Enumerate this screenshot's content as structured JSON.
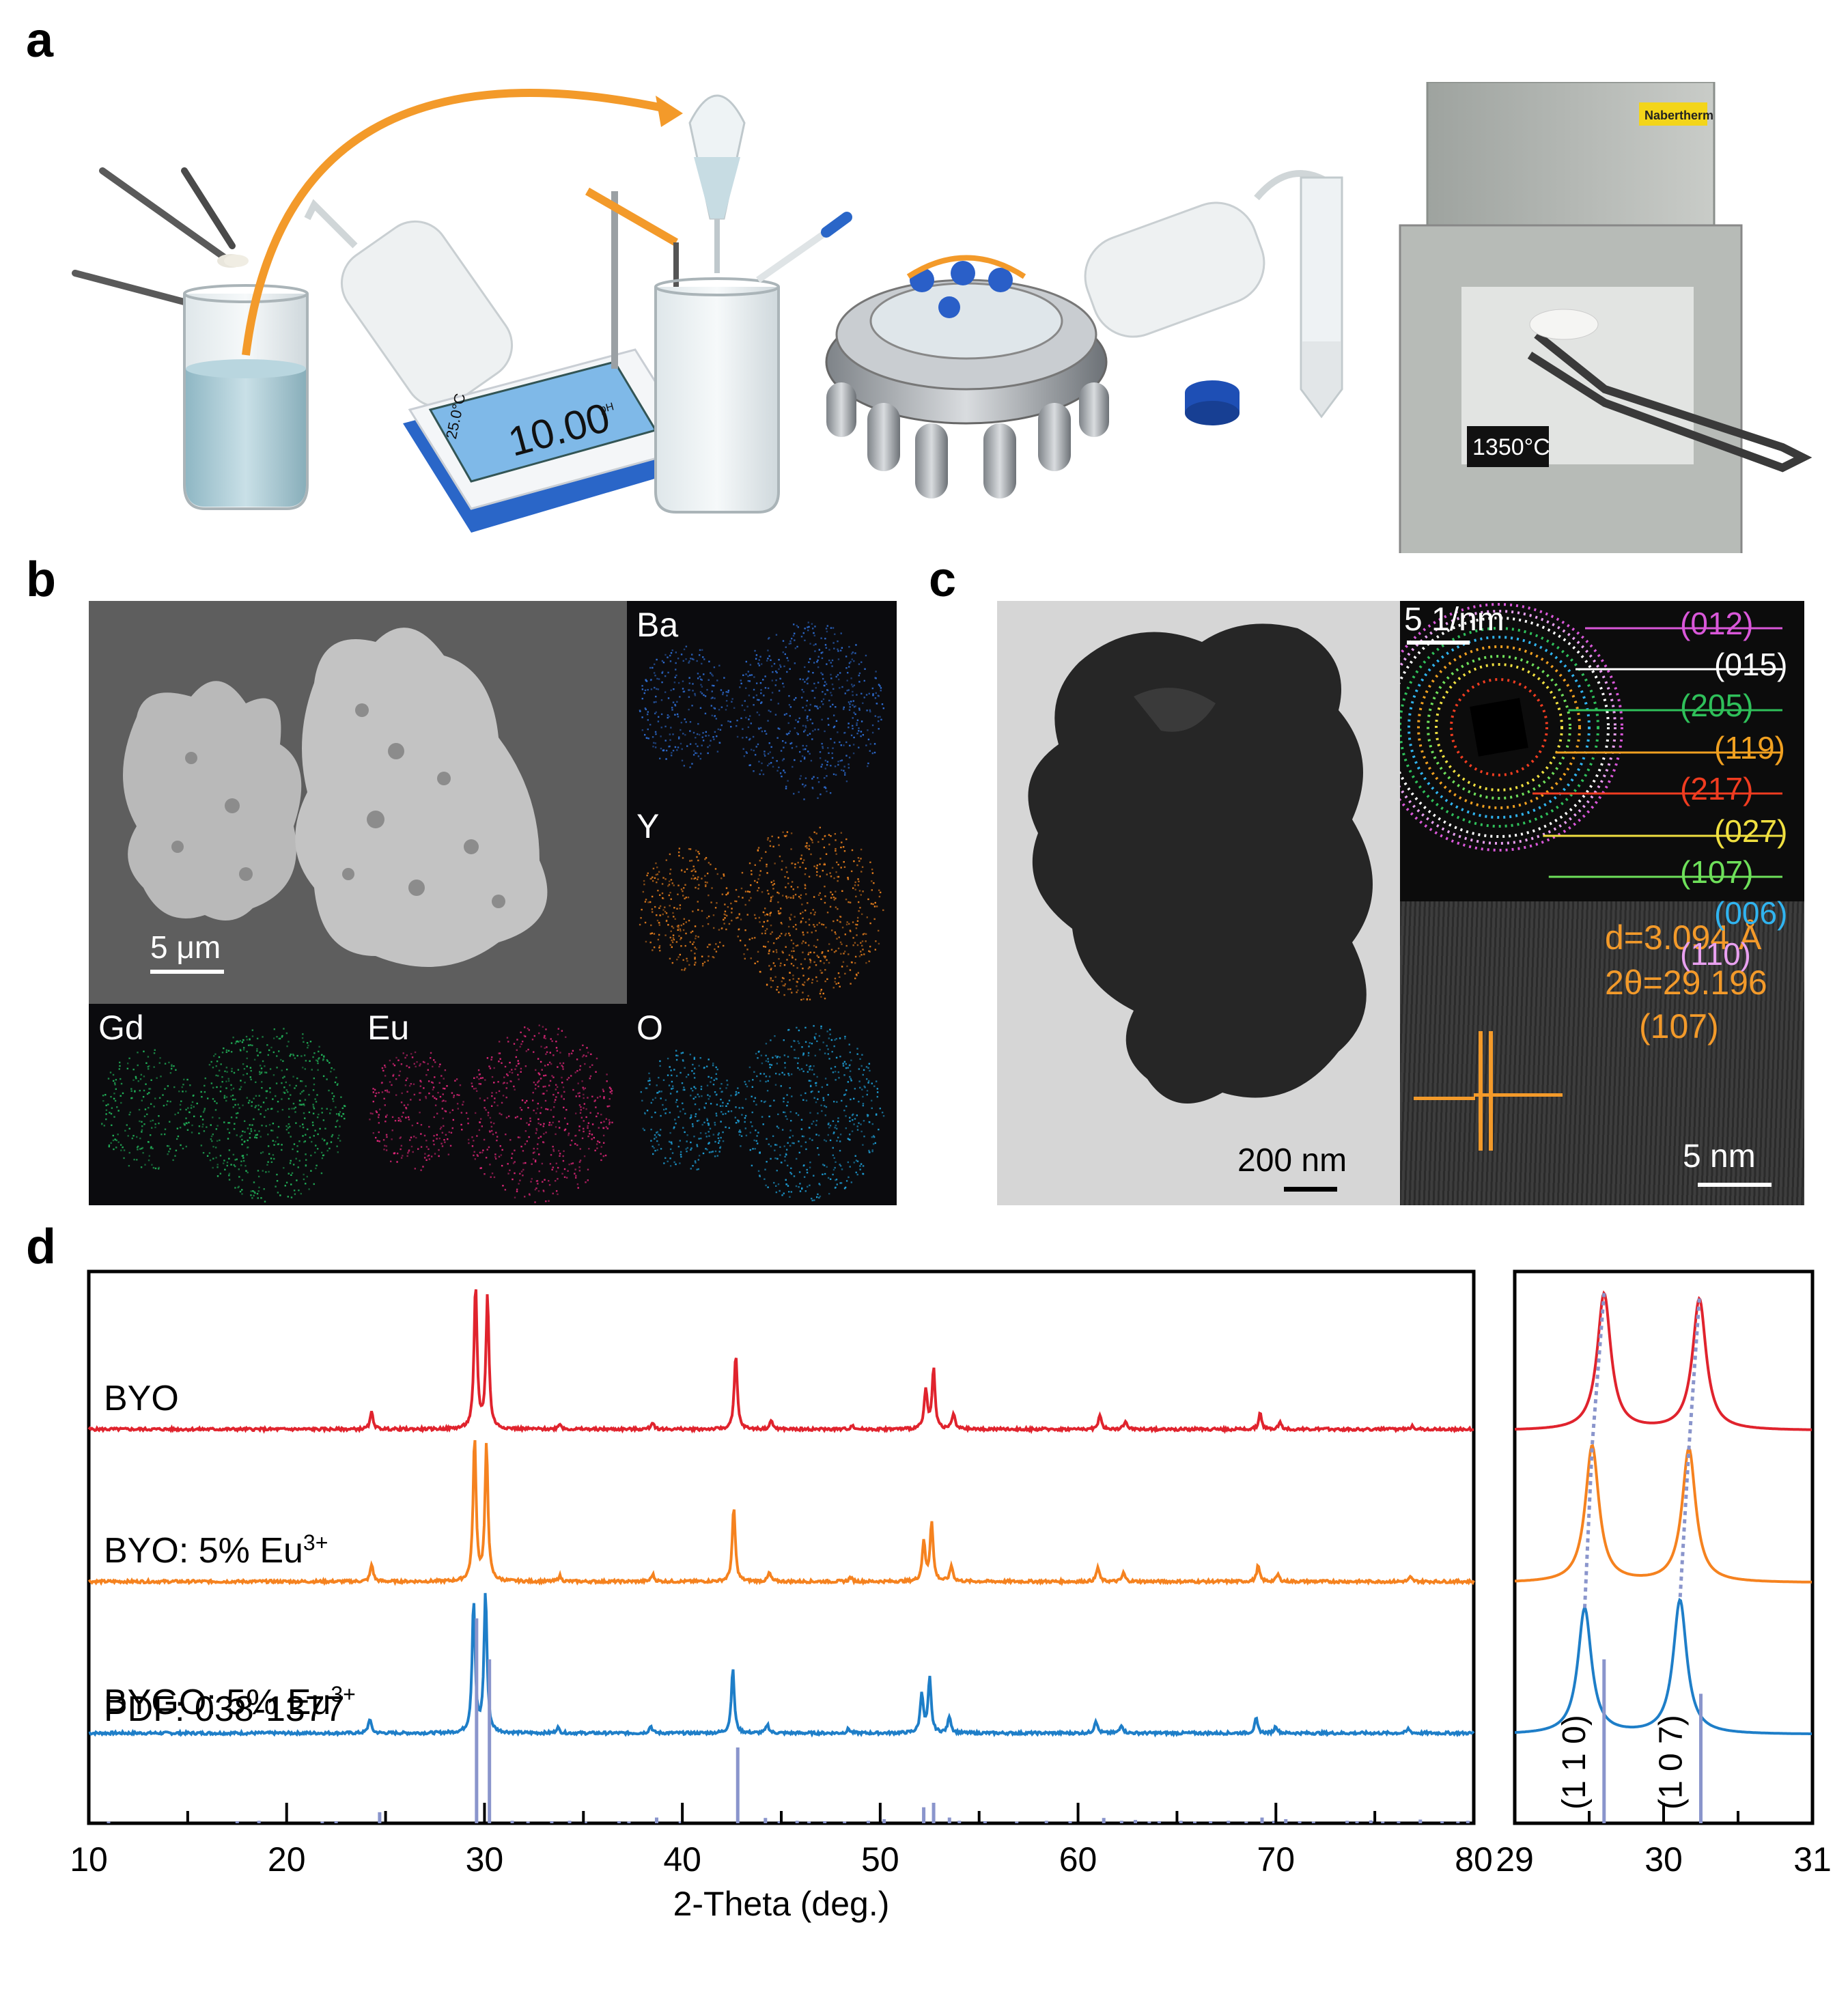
{
  "panel_labels": {
    "a": "a",
    "b": "b",
    "c": "c",
    "d": "d"
  },
  "panel_a": {
    "ph_meter": {
      "temp": "25.0°C",
      "value": "10.00",
      "unit": "pH"
    },
    "furnace": {
      "brand": "Nabertherm",
      "temp": "1350°C"
    }
  },
  "panel_b": {
    "scale_bar": "5 μm",
    "elements": [
      {
        "name": "Ba",
        "color": "#2f6fd6"
      },
      {
        "name": "Y",
        "color": "#f0841e"
      },
      {
        "name": "Gd",
        "color": "#22b45a"
      },
      {
        "name": "Eu",
        "color": "#e0277a"
      },
      {
        "name": "O",
        "color": "#1ea0d8"
      }
    ]
  },
  "panel_c": {
    "tem_scale": "200 nm",
    "saed_scale": "5 1/nm",
    "rings": [
      {
        "label": "(012)",
        "color": "#d957d9"
      },
      {
        "label": "(015)",
        "color": "#ffffff"
      },
      {
        "label": "(205)",
        "color": "#2fc05a"
      },
      {
        "label": "(119)",
        "color": "#f0a020"
      },
      {
        "label": "(217)",
        "color": "#f03c20"
      },
      {
        "label": "(027)",
        "color": "#f0e040"
      },
      {
        "label": "(107)",
        "color": "#6ee05a"
      },
      {
        "label": "(006)",
        "color": "#30b4f0"
      },
      {
        "label": "(110)",
        "color": "#e8a0f0"
      }
    ],
    "hrtem": {
      "d": "d=3.094 Å",
      "two_theta": "2θ=29.196",
      "plane": "(107)",
      "scale": "5 nm"
    }
  },
  "chart_data": [
    {
      "type": "line",
      "xlabel": "2-Theta (deg.)",
      "ylabel": "",
      "xlim": [
        10,
        80
      ],
      "xticks": [
        10,
        20,
        30,
        40,
        50,
        60,
        70,
        80
      ],
      "series": [
        {
          "name": "BYO",
          "color": "#e0232d",
          "peaks": [
            [
              24.3,
              0.12
            ],
            [
              29.55,
              1.0
            ],
            [
              30.15,
              0.93
            ],
            [
              33.8,
              0.04
            ],
            [
              38.5,
              0.05
            ],
            [
              42.7,
              0.52
            ],
            [
              44.5,
              0.06
            ],
            [
              48.6,
              0.03
            ],
            [
              52.3,
              0.28
            ],
            [
              52.7,
              0.42
            ],
            [
              53.7,
              0.11
            ],
            [
              61.1,
              0.1
            ],
            [
              62.4,
              0.06
            ],
            [
              69.2,
              0.11
            ],
            [
              70.2,
              0.05
            ],
            [
              76.9,
              0.03
            ]
          ]
        },
        {
          "name": "BYO: 5% Eu",
          "name_sup": "3+",
          "color": "#f5821f",
          "peaks": [
            [
              24.3,
              0.12
            ],
            [
              29.5,
              1.0
            ],
            [
              30.1,
              0.95
            ],
            [
              33.8,
              0.04
            ],
            [
              38.5,
              0.05
            ],
            [
              42.6,
              0.52
            ],
            [
              44.4,
              0.06
            ],
            [
              48.5,
              0.03
            ],
            [
              52.2,
              0.28
            ],
            [
              52.6,
              0.42
            ],
            [
              53.6,
              0.11
            ],
            [
              61.0,
              0.1
            ],
            [
              62.3,
              0.06
            ],
            [
              69.1,
              0.11
            ],
            [
              70.1,
              0.05
            ],
            [
              76.8,
              0.03
            ]
          ]
        },
        {
          "name": "BYGO: 5% Eu",
          "name_sup": "3+",
          "color": "#1e7ec8",
          "peaks": [
            [
              24.2,
              0.1
            ],
            [
              29.45,
              0.92
            ],
            [
              30.05,
              0.98
            ],
            [
              33.7,
              0.04
            ],
            [
              38.4,
              0.05
            ],
            [
              42.55,
              0.45
            ],
            [
              44.3,
              0.06
            ],
            [
              48.4,
              0.03
            ],
            [
              52.1,
              0.28
            ],
            [
              52.5,
              0.38
            ],
            [
              53.5,
              0.12
            ],
            [
              60.9,
              0.09
            ],
            [
              62.2,
              0.06
            ],
            [
              69.0,
              0.1
            ],
            [
              70.0,
              0.05
            ],
            [
              76.7,
              0.03
            ]
          ]
        }
      ],
      "reference": {
        "name": "PDF: 038-1377",
        "color": "#8a95cc",
        "sticks": [
          [
            11.0,
            0.04
          ],
          [
            17.5,
            0.05
          ],
          [
            18.6,
            0.06
          ],
          [
            21.8,
            0.04
          ],
          [
            22.5,
            0.05
          ],
          [
            24.7,
            0.27
          ],
          [
            31.4,
            0.06
          ],
          [
            32.2,
            0.04
          ],
          [
            33.4,
            0.05
          ],
          [
            34.3,
            0.06
          ],
          [
            35.1,
            0.04
          ],
          [
            36.8,
            0.05
          ],
          [
            37.3,
            0.04
          ],
          [
            38.7,
            0.14
          ],
          [
            39.9,
            0.04
          ],
          [
            44.2,
            0.13
          ],
          [
            44.9,
            0.05
          ],
          [
            45.8,
            0.06
          ],
          [
            46.4,
            0.04
          ],
          [
            47.2,
            0.05
          ],
          [
            48.2,
            0.04
          ],
          [
            49.4,
            0.06
          ],
          [
            50.2,
            0.1
          ],
          [
            52.2,
            0.39
          ],
          [
            52.7,
            0.5
          ],
          [
            53.5,
            0.14
          ],
          [
            54.0,
            0.06
          ],
          [
            55.3,
            0.05
          ],
          [
            56.9,
            0.04
          ],
          [
            58.4,
            0.06
          ],
          [
            59.6,
            0.05
          ],
          [
            61.3,
            0.13
          ],
          [
            62.2,
            0.06
          ],
          [
            62.9,
            0.08
          ],
          [
            63.6,
            0.04
          ],
          [
            64.1,
            0.05
          ],
          [
            65.2,
            0.06
          ],
          [
            65.9,
            0.04
          ],
          [
            66.7,
            0.05
          ],
          [
            67.6,
            0.06
          ],
          [
            68.5,
            0.04
          ],
          [
            69.3,
            0.14
          ],
          [
            69.9,
            0.06
          ],
          [
            70.5,
            0.1
          ],
          [
            71.2,
            0.05
          ],
          [
            71.9,
            0.04
          ],
          [
            73.6,
            0.06
          ],
          [
            74.1,
            0.05
          ],
          [
            74.8,
            0.07
          ],
          [
            75.4,
            0.04
          ],
          [
            76.2,
            0.05
          ],
          [
            77.3,
            0.09
          ],
          [
            78.4,
            0.05
          ],
          [
            79.2,
            0.04
          ],
          [
            79.7,
            0.06
          ]
        ],
        "main_sticks": [
          [
            29.6,
            1.0
          ],
          [
            30.25,
            0.8
          ],
          [
            42.8,
            0.37
          ]
        ]
      }
    },
    {
      "type": "line",
      "xlabel": "",
      "xlim": [
        29,
        31
      ],
      "xticks": [
        29,
        30,
        31
      ],
      "series": [
        {
          "name": "BYO",
          "color": "#e0232d",
          "peaks": [
            [
              29.6,
              1.0
            ],
            [
              30.24,
              0.96
            ]
          ]
        },
        {
          "name": "BYO: 5% Eu3+",
          "color": "#f5821f",
          "peaks": [
            [
              29.52,
              1.0
            ],
            [
              30.17,
              0.98
            ]
          ]
        },
        {
          "name": "BYGO: 5% Eu3+",
          "color": "#1e7ec8",
          "peaks": [
            [
              29.47,
              0.92
            ],
            [
              30.11,
              0.98
            ]
          ]
        }
      ],
      "reference": {
        "color": "#8a95cc",
        "sticks": [
          [
            29.6,
            1.0
          ],
          [
            30.25,
            0.79
          ]
        ],
        "labels": [
          "(1 1 0)",
          "(1 0 7)"
        ]
      }
    }
  ]
}
